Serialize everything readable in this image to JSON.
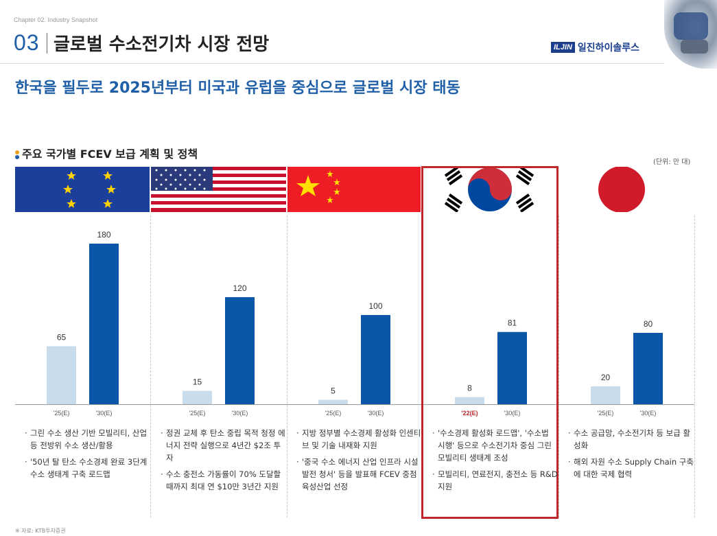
{
  "header": {
    "chapter": "Chapter 02. Industry Snapshot",
    "section_number": "03",
    "section_title": "글로벌 수소전기차 시장 전망",
    "logo_box": "ILJIN",
    "logo_text": "일진하이솔루스"
  },
  "headline": "한국을 필두로 2025년부터 미국과 유럽을 중심으로 글로벌 시장 태동",
  "subtitle": "주요 국가별 FCEV 보급 계획 및 정책",
  "unit": "(단위: 만 대)",
  "source": "※ 자료: KTB투자증권",
  "colors": {
    "light_bar": "#c9dcec",
    "dark_bar": "#0a57a8",
    "highlight": "#c0272d",
    "accent_label": "#c0272d"
  },
  "chart_data": {
    "type": "bar",
    "ylabel": "만 대",
    "groups": [
      {
        "region": "EU",
        "flag": "eu-flag",
        "bars": [
          {
            "label": "'25(E)",
            "value": 65
          },
          {
            "label": "'30(E)",
            "value": 180
          }
        ]
      },
      {
        "region": "USA",
        "flag": "us-flag",
        "bars": [
          {
            "label": "'25(E)",
            "value": 15
          },
          {
            "label": "'30(E)",
            "value": 120
          }
        ]
      },
      {
        "region": "China",
        "flag": "china-flag",
        "bars": [
          {
            "label": "'25(E)",
            "value": 5
          },
          {
            "label": "'30(E)",
            "value": 100
          }
        ]
      },
      {
        "region": "Korea",
        "flag": "korea-flag",
        "highlighted": true,
        "bars": [
          {
            "label": "'22(E)",
            "value": 8
          },
          {
            "label": "'30(E)",
            "value": 81
          }
        ]
      },
      {
        "region": "Japan",
        "flag": "japan-flag",
        "bars": [
          {
            "label": "'25(E)",
            "value": 20
          },
          {
            "label": "'30(E)",
            "value": 80
          }
        ]
      }
    ]
  },
  "notes": [
    [
      "그린 수소 생산 기반 모빌리티, 산업 등 전방위 수소 생산/활용",
      "'50년 탈 탄소 수소경제 완료 3단계 수소 생태계 구축 로드맵"
    ],
    [
      "정권 교체 후 탄소 중립 목적 청정 에너지 전략 실행으로 4년간 $2조 투자",
      "수소 충전소 가동률이 70% 도달할 때까지 최대 연 $10만 3년간 지원"
    ],
    [
      "지방 정부별 수소경제 활성화 인센티브 및 기술 내재화 지원",
      "'중국 수소 에너지 산업 인프라 시설 발전 청서' 등을 발표해 FCEV 중점 육성산업 선정"
    ],
    [
      "'수소경제 활성화 로드맵', '수소법 시행' 등으로 수소전기차 중심 그린 모빌리티 생태계 조성",
      "모빌리티, 연료전지, 충전소 등 R&D 지원"
    ],
    [
      "수소 공급망, 수소전기차 등 보급 활성화",
      "해외 자원 수소 Supply Chain 구축에 대한 국제 협력"
    ]
  ]
}
